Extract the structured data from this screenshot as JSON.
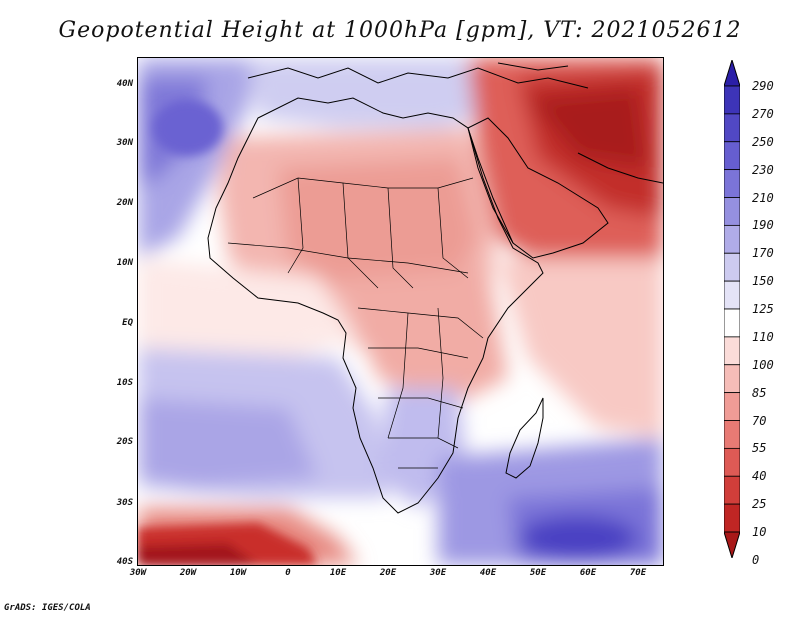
{
  "title": "Geopotential Height at 1000hPa [gpm], VT: 2021052612",
  "credit": "GrADS: IGES/COLA",
  "latitude_labels": [
    "40N",
    "30N",
    "20N",
    "10N",
    "EQ",
    "10S",
    "20S",
    "30S",
    "40S"
  ],
  "longitude_labels": [
    "30W",
    "20W",
    "10W",
    "0",
    "10E",
    "20E",
    "30E",
    "40E",
    "50E",
    "60E",
    "70E"
  ],
  "colorbar": {
    "labels": [
      "290",
      "270",
      "250",
      "230",
      "210",
      "190",
      "170",
      "150",
      "125",
      "110",
      "100",
      "85",
      "70",
      "55",
      "40",
      "25",
      "10",
      "0"
    ],
    "colors": [
      "#2b1fa8",
      "#3d34b8",
      "#5148c4",
      "#665ed0",
      "#7b74d8",
      "#9590e0",
      "#b0ace8",
      "#cdcbf0",
      "#e4e3f7",
      "#ffffff",
      "#fbdcd9",
      "#f6bdb8",
      "#f09c96",
      "#e87a74",
      "#de5a55",
      "#d13e3a",
      "#c02624",
      "#a81818"
    ]
  },
  "map": {
    "region": "Africa and Middle East",
    "lon_range": [
      -30,
      75
    ],
    "lat_range": [
      -40,
      45
    ],
    "variable": "Geopotential Height at 1000hPa",
    "units": "gpm"
  }
}
